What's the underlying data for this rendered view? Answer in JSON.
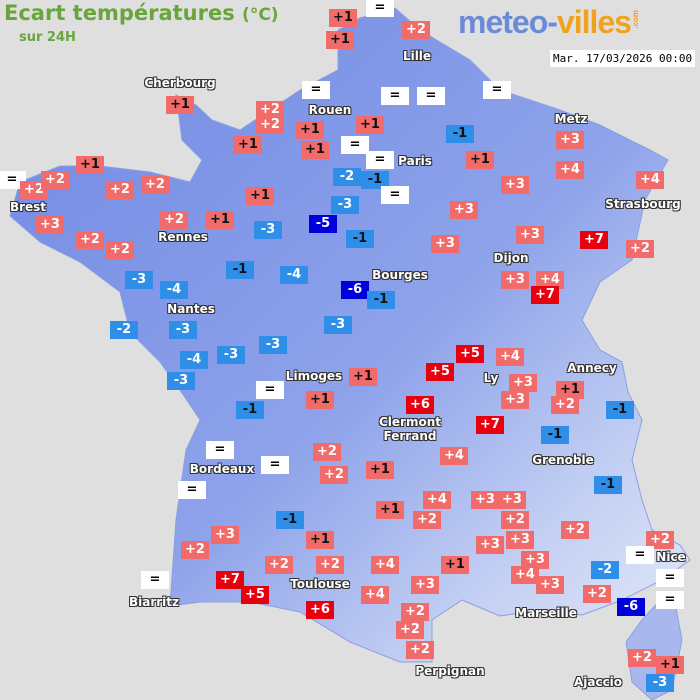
{
  "header": {
    "title": "Ecart températures",
    "unit": "(°C)",
    "subtitle": "sur 24H",
    "date": "Mar. 17/03/2026 00:00"
  },
  "logo": {
    "part1": "meteo-",
    "part2": "villes",
    "suffix": ".com"
  },
  "colors": {
    "equal": "#ffffff",
    "warm": "#f26b6b",
    "hot": "#e8000f",
    "cool": "#2f8fe8",
    "cold": "#0000dd",
    "land": "#7892e6",
    "sea": "#e0dfdf",
    "title": "#6aa53c"
  },
  "cities": [
    "Lille",
    "Cherbourg",
    "Rouen",
    "Metz",
    "Paris",
    "Brest",
    "Strasbourg",
    "Rennes",
    "Dijon",
    "Bourges",
    "Nantes",
    "Limoges",
    "Annecy",
    "Ly",
    "Clermont\nFerrand",
    "Grenoble",
    "Bordeaux",
    "Nice",
    "Toulouse",
    "Biarritz",
    "Marseille",
    "Perpignan",
    "Ajaccio"
  ],
  "anomalies": [
    "+1",
    "+1",
    "=",
    "+2",
    "=",
    "=",
    "=",
    "=",
    "+1",
    "+2",
    "+2",
    "+1",
    "+1",
    "+1",
    "+1",
    "=",
    "=",
    "-1",
    "+1",
    "+3",
    "+4",
    "+4",
    "=",
    "+2",
    "+2",
    "+1",
    "+2",
    "+2",
    "-2",
    "-1",
    "=",
    "+3",
    "-3",
    "+3",
    "+3",
    "+2",
    "+2",
    "+2",
    "+1",
    "+1",
    "-3",
    "-5",
    "-1",
    "+3",
    "+3",
    "+7",
    "+2",
    "-3",
    "-4",
    "-1",
    "-4",
    "-6",
    "-1",
    "+3",
    "+4",
    "+7",
    "-2",
    "-3",
    "-3",
    "-3",
    "-3",
    "-4",
    "-3",
    "+5",
    "+4",
    "+5",
    "+1",
    "=",
    "+1",
    "-1",
    "+3",
    "+3",
    "+1",
    "+2",
    "-1",
    "+6",
    "+7",
    "-1",
    "=",
    "=",
    "+2",
    "+2",
    "+1",
    "+4",
    "=",
    "-1",
    "+1",
    "+4",
    "+2",
    "+3",
    "+3",
    "+2",
    "-1",
    "+2",
    "+2",
    "=",
    "=",
    "=",
    "+3",
    "+2",
    "+1",
    "+2",
    "+2",
    "+4",
    "+1",
    "+3",
    "+3",
    "+3",
    "+4",
    "+3",
    "-2",
    "+2",
    "-6",
    "=",
    "+7",
    "+5",
    "+6",
    "+4",
    "+3",
    "+2",
    "+2",
    "+2",
    "+2",
    "+1",
    "-3"
  ]
}
